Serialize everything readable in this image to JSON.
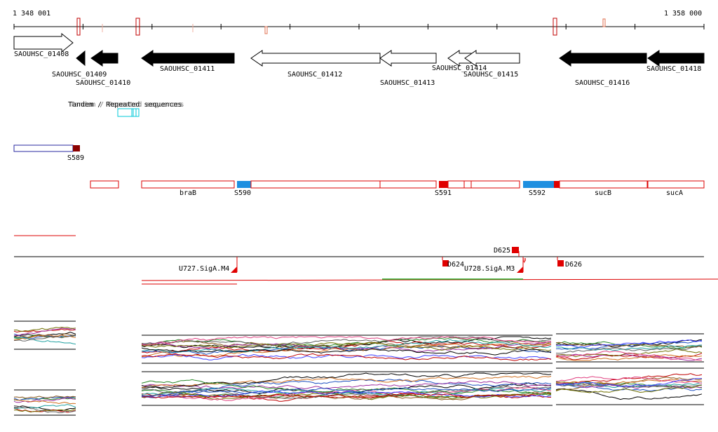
{
  "coords": {
    "start": "1 348 001",
    "end": "1 358 000"
  },
  "genes": [
    {
      "label": "SAOUHSC_01408",
      "strand": "+",
      "fill": "white"
    },
    {
      "label": "SAOUHSC_01409",
      "strand": "-",
      "fill": "black"
    },
    {
      "label": "SAOUHSC_01410",
      "strand": "-",
      "fill": "black"
    },
    {
      "label": "SAOUHSC_01411",
      "strand": "-",
      "fill": "black"
    },
    {
      "label": "SAOUHSC_01412",
      "strand": "-",
      "fill": "white"
    },
    {
      "label": "SAOUHSC_01413",
      "strand": "-",
      "fill": "white"
    },
    {
      "label": "SAOUHSC_01414",
      "strand": "-",
      "fill": "white"
    },
    {
      "label": "SAOUHSC_01415",
      "strand": "-",
      "fill": "white"
    },
    {
      "label": "SAOUHSC_01416",
      "strand": "-",
      "fill": "black"
    },
    {
      "label": "SAOUHSC_01418",
      "strand": "-",
      "fill": "black"
    }
  ],
  "repeats": {
    "label": "Tandem / Repeated sequences"
  },
  "segments_top": {
    "label": "S589"
  },
  "segments": [
    {
      "label": "braB"
    },
    {
      "label": "S590"
    },
    {
      "label": "S591"
    },
    {
      "label": "S592"
    },
    {
      "label": "sucB"
    },
    {
      "label": "sucA"
    }
  ],
  "promoters": [
    {
      "label": "D625"
    },
    {
      "label": "D624"
    },
    {
      "label": "U727.SigA.M4"
    },
    {
      "label": "U728.SigA.M3"
    },
    {
      "label": "D626"
    }
  ],
  "colors": {
    "gene_forward": "#ffffff",
    "gene_reverse": "#000000",
    "segment_outline": "#dd0000",
    "segment_highlight": "#1e8fe0",
    "segment_red": "#e00000",
    "repeat": "#00c8d8",
    "line_green": "#22aa22",
    "s589_box": "#2a2aa0",
    "s589_end": "#8b0000"
  }
}
